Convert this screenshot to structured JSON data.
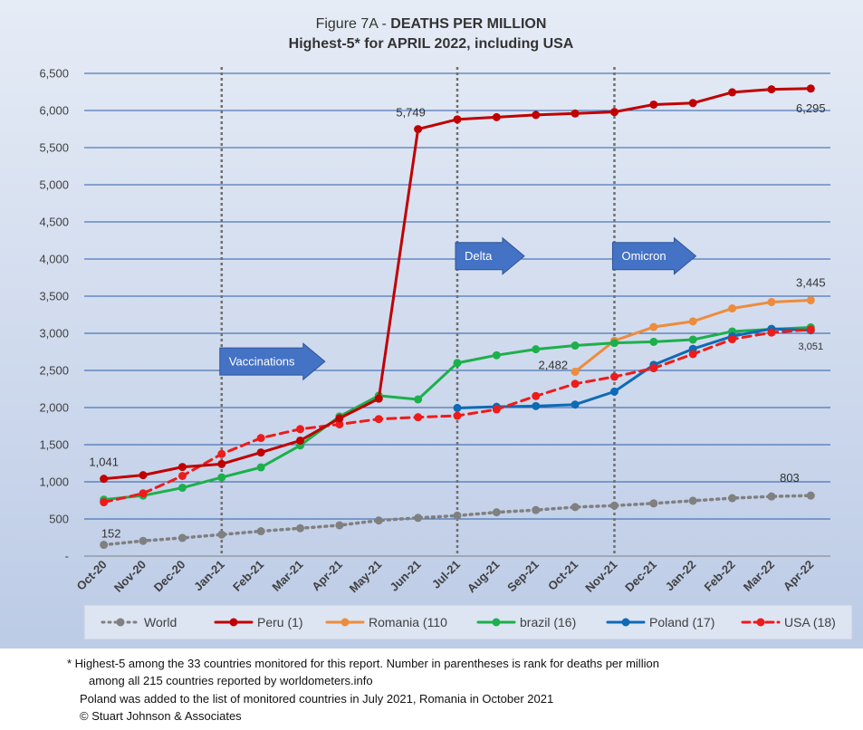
{
  "chart_data": {
    "type": "line",
    "title": "Figure 7A - DEATHS PER MILLION",
    "title_prefix": "Figure 7A - ",
    "title_bold": "DEATHS PER MILLION",
    "subtitle": "Highest-5* for APRIL 2022, including USA",
    "categories": [
      "Oct-20",
      "Nov-20",
      "Dec-20",
      "Jan-21",
      "Feb-21",
      "Mar-21",
      "Apr-21",
      "May-21",
      "Jun-21",
      "Jul-21",
      "Aug-21",
      "Sep-21",
      "Oct-21",
      "Nov-21",
      "Dec-21",
      "Jan-22",
      "Feb-22",
      "Mar-22",
      "Apr-22"
    ],
    "ylim": [
      0,
      6500
    ],
    "yticks": [
      0,
      500,
      1000,
      1500,
      2000,
      2500,
      3000,
      3500,
      4000,
      4500,
      5000,
      5500,
      6000,
      6500
    ],
    "ytick_labels": [
      "-",
      "500",
      "1,000",
      "1,500",
      "2,000",
      "2,500",
      "3,000",
      "3,500",
      "4,000",
      "4,500",
      "5,000",
      "5,500",
      "6,000",
      "6,500"
    ],
    "grid": "horizontal",
    "legend_position": "bottom",
    "series": [
      {
        "name": "World",
        "color": "#808080",
        "style": "dotted",
        "values": [
          152,
          205,
          245,
          290,
          335,
          375,
          415,
          480,
          515,
          545,
          590,
          620,
          660,
          680,
          710,
          745,
          780,
          803,
          815
        ]
      },
      {
        "name": "Peru (1)",
        "color": "#c00000",
        "style": "solid",
        "values": [
          1041,
          1090,
          1200,
          1240,
          1395,
          1555,
          1855,
          2120,
          5749,
          5880,
          5910,
          5940,
          5960,
          5980,
          6080,
          6100,
          6245,
          6285,
          6295
        ]
      },
      {
        "name": "Romania (110",
        "color": "#ed8c3d",
        "style": "solid",
        "values": [
          null,
          null,
          null,
          null,
          null,
          null,
          null,
          null,
          null,
          null,
          null,
          null,
          2482,
          2900,
          3085,
          3160,
          3335,
          3420,
          3445
        ]
      },
      {
        "name": "brazil (16)",
        "color": "#1cb04b",
        "style": "solid",
        "values": [
          760,
          815,
          920,
          1060,
          1195,
          1490,
          1880,
          2160,
          2110,
          2600,
          2705,
          2785,
          2835,
          2870,
          2885,
          2915,
          3025,
          3055,
          3080
        ]
      },
      {
        "name": "Poland (17)",
        "color": "#0e6ab5",
        "style": "solid",
        "values": [
          null,
          null,
          null,
          null,
          null,
          null,
          null,
          null,
          null,
          1995,
          2010,
          2020,
          2040,
          2215,
          2575,
          2790,
          2960,
          3060,
          3040
        ]
      },
      {
        "name": "USA (18)",
        "color": "#ee1b1b",
        "style": "dashed",
        "values": [
          725,
          845,
          1080,
          1375,
          1590,
          1710,
          1775,
          1845,
          1870,
          1890,
          1975,
          2155,
          2320,
          2415,
          2530,
          2720,
          2920,
          3010,
          3051
        ]
      }
    ],
    "vertical_markers": [
      {
        "category": "Jan-21"
      },
      {
        "category": "Jul-21"
      },
      {
        "category": "Nov-21"
      }
    ],
    "annotations": [
      {
        "text": "Vaccinations",
        "category": "Jan-21",
        "y": 2620
      },
      {
        "text": "Delta",
        "category": "Jul-21",
        "y": 4040
      },
      {
        "text": "Omicron",
        "category": "Nov-21",
        "y": 4040
      }
    ],
    "data_labels": [
      {
        "text": "1,041",
        "series": "Peru (1)",
        "category": "Oct-20"
      },
      {
        "text": "5,749",
        "series": "Peru (1)",
        "category": "Jun-21"
      },
      {
        "text": "6,295",
        "series": "Peru (1)",
        "category": "Apr-22"
      },
      {
        "text": "3,445",
        "series": "Romania (110",
        "category": "Apr-22"
      },
      {
        "text": "2,482",
        "series": "Romania (110",
        "category": "Oct-21"
      },
      {
        "text": "3,051",
        "series": "USA (18)",
        "category": "Apr-22"
      },
      {
        "text": "152",
        "series": "World",
        "category": "Oct-20"
      },
      {
        "text": "803",
        "series": "World",
        "category": "Mar-22"
      }
    ]
  },
  "footnotes": {
    "line1": "* Highest-5 among the 33 countries monitored for this report. Number in parentheses is rank for deaths per million",
    "line2": "among all 215 countries reported by worldometers.info",
    "line3": "Poland was added to the list of monitored countries in July 2021, Romania in October 2021",
    "line4": "© Stuart Johnson & Associates"
  }
}
